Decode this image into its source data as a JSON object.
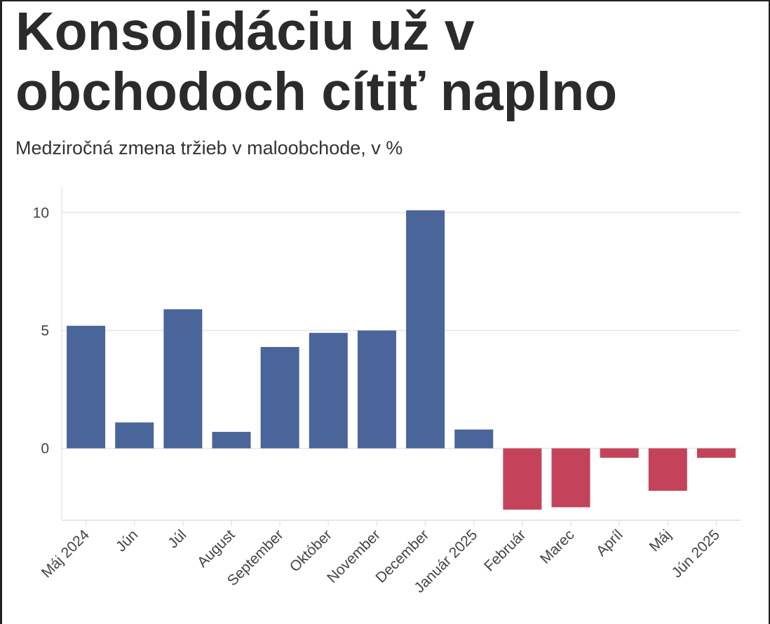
{
  "title": "Konsolidáciu už v obchodoch cítiť naplno",
  "subtitle": "Medziročná zmena tržieb v maloobchode, v %",
  "colors": {
    "positive": "#4a6599",
    "negative": "#c4435a",
    "grid": "#e6e6e6"
  },
  "chart_data": {
    "type": "bar",
    "title": "Konsolidáciu už v obchodoch cítiť naplno",
    "subtitle": "Medziročná zmena tržieb v maloobchode, v %",
    "xlabel": "",
    "ylabel": "",
    "categories": [
      "Máj 2024",
      "Jún",
      "Júl",
      "August",
      "September",
      "Október",
      "November",
      "December",
      "Január 2025",
      "Február",
      "Marec",
      "Apríl",
      "Máj",
      "Jún 2025"
    ],
    "values": [
      5.2,
      1.1,
      5.9,
      0.7,
      4.3,
      4.9,
      5.0,
      10.1,
      0.8,
      -2.6,
      -2.5,
      -0.4,
      -1.8,
      -0.4
    ],
    "ylim": [
      -3.05,
      11.05
    ],
    "yticks": [
      0,
      5,
      10
    ],
    "ytick_labels": [
      "0",
      "5",
      "10"
    ],
    "grid": true,
    "legend": "none"
  }
}
